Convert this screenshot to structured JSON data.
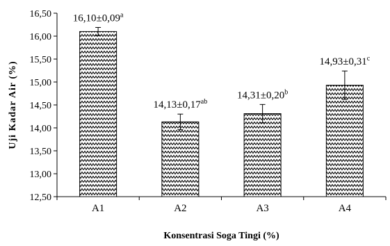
{
  "chart_data": {
    "type": "bar",
    "categories": [
      "A1",
      "A2",
      "A3",
      "A4"
    ],
    "values": [
      16.1,
      14.13,
      14.31,
      14.93
    ],
    "errors": [
      0.09,
      0.17,
      0.2,
      0.31
    ],
    "labels": [
      {
        "text": "16,10±0,09",
        "sup": "a"
      },
      {
        "text": "14,13±0,17",
        "sup": "ab"
      },
      {
        "text": "14,31±0,20",
        "sup": "b"
      },
      {
        "text": "14,93±0,31",
        "sup": "c"
      }
    ],
    "title": "",
    "xlabel": "Konsentrasi Soga Tingi (%)",
    "ylabel": "Uji Kadar Air (%)",
    "ylim": [
      12.5,
      16.5
    ],
    "yticks": [
      12.5,
      13.0,
      13.5,
      14.0,
      14.5,
      15.0,
      15.5,
      16.0,
      16.5
    ],
    "ytick_labels": [
      "12,50",
      "13,00",
      "13,50",
      "14,00",
      "14,50",
      "15,00",
      "15,50",
      "16,00",
      "16,50"
    ],
    "grid": false,
    "legend": "none",
    "bar_pattern": "zigzag",
    "bar_color": "#000000"
  }
}
